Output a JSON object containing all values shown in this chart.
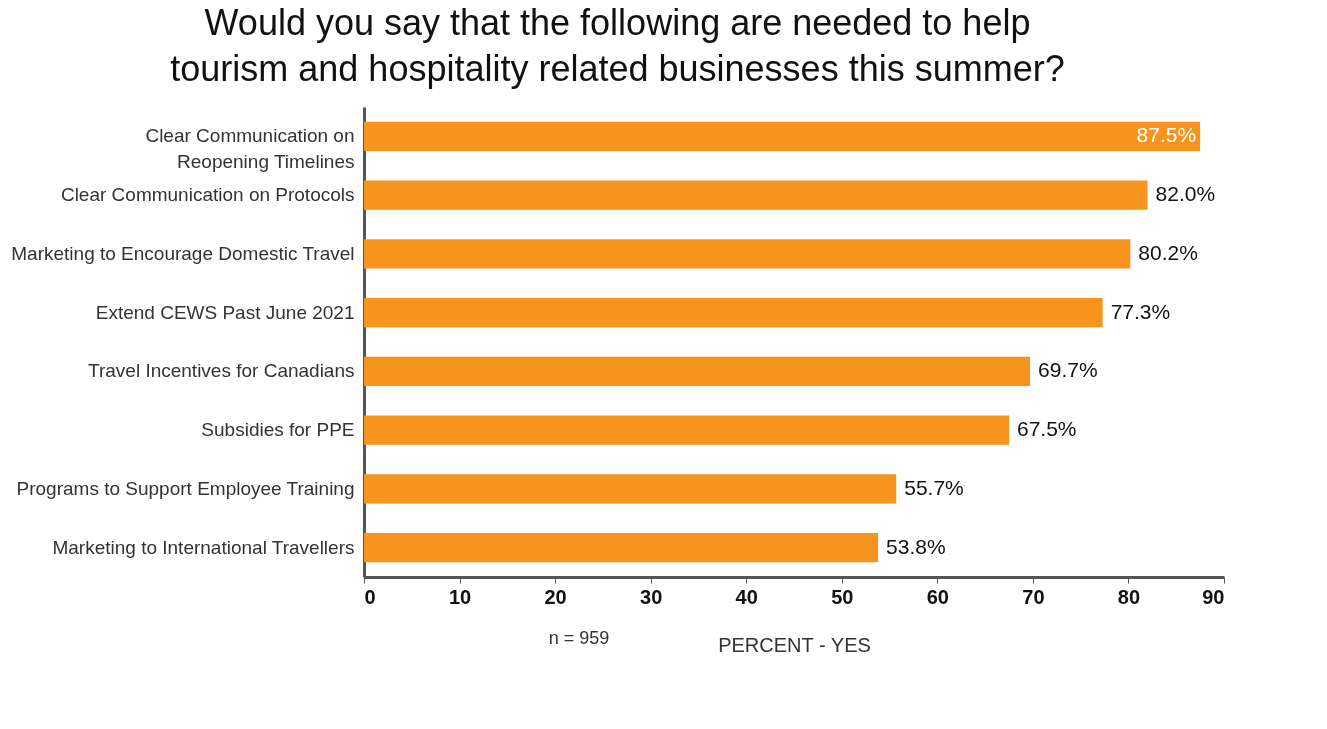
{
  "chart_data": {
    "type": "bar",
    "orientation": "horizontal",
    "title": "Would you say that the following are needed to help tourism and hospitality related businesses this summer?",
    "categories": [
      "Clear Communication on Reopening Timelines",
      "Clear Communication on Protocols",
      "Marketing to Encourage Domestic Travel",
      "Extend CEWS Past June 2021",
      "Travel Incentives for Canadians",
      "Subsidies for PPE",
      "Programs to Support Employee Training",
      "Marketing to International Travellers"
    ],
    "values": [
      87.5,
      82.0,
      80.2,
      77.3,
      69.7,
      67.5,
      55.7,
      53.8
    ],
    "value_labels": [
      "87.5%",
      "82.0%",
      "80.2%",
      "77.3%",
      "69.7%",
      "67.5%",
      "55.7%",
      "53.8%"
    ],
    "color": "#f7941d",
    "xlim": [
      0,
      90
    ],
    "xticks": [
      0,
      10,
      20,
      30,
      40,
      50,
      60,
      70,
      80,
      90
    ],
    "xlabel": "PERCENT - YES",
    "annotations": [
      "n = 959"
    ],
    "grid": false
  }
}
